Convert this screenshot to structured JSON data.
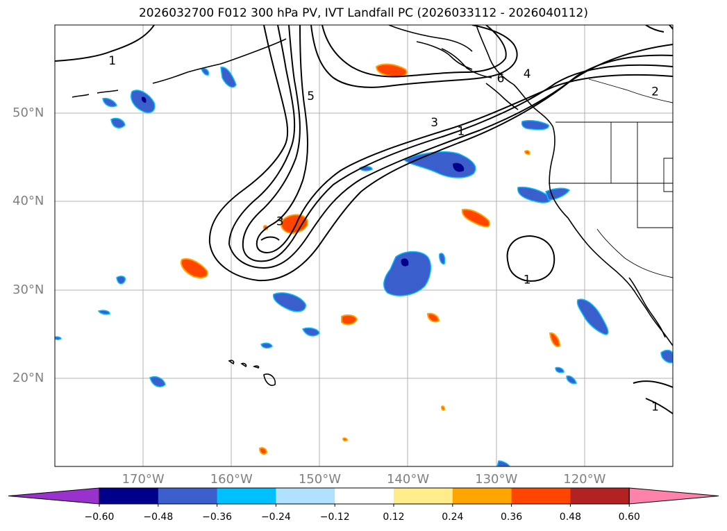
{
  "title": "2026032700 F012 300 hPa PV, IVT Landfall PC (2026033112 - 2026040112)",
  "map": {
    "lon_range": [
      -180,
      -110
    ],
    "lat_range": [
      10,
      60
    ],
    "lat_labels": [
      {
        "lat": 50,
        "text": "50°N"
      },
      {
        "lat": 40,
        "text": "40°N"
      },
      {
        "lat": 30,
        "text": "30°N"
      },
      {
        "lat": 20,
        "text": "20°N"
      }
    ],
    "lon_labels": [
      {
        "lon": -170,
        "text": "170°W"
      },
      {
        "lon": -160,
        "text": "160°W"
      },
      {
        "lon": -150,
        "text": "150°W"
      },
      {
        "lon": -140,
        "text": "140°W"
      },
      {
        "lon": -130,
        "text": "130°W"
      },
      {
        "lon": -120,
        "text": "120°W"
      }
    ],
    "contour_labels": [
      {
        "text": "1",
        "lon": -173.5,
        "lat": 56.0
      },
      {
        "text": "5",
        "lon": -151.0,
        "lat": 52.0
      },
      {
        "text": "3",
        "lon": -137.0,
        "lat": 49.0
      },
      {
        "text": "1",
        "lon": -134.0,
        "lat": 48.0
      },
      {
        "text": "4",
        "lon": -126.5,
        "lat": 54.5
      },
      {
        "text": "6",
        "lon": -129.5,
        "lat": 54.0
      },
      {
        "text": "2",
        "lon": -112.0,
        "lat": 52.5
      },
      {
        "text": "3",
        "lon": -154.5,
        "lat": 37.8
      },
      {
        "text": "1",
        "lon": -126.5,
        "lat": 31.2
      },
      {
        "text": "1",
        "lon": -112.0,
        "lat": 16.8
      }
    ]
  },
  "colorbar": {
    "ticks": [
      "−0.60",
      "−0.48",
      "−0.36",
      "−0.24",
      "−0.12",
      "0.12",
      "0.24",
      "0.36",
      "0.48",
      "0.60"
    ],
    "colors": [
      "#9932cc",
      "#00008b",
      "#3a5fcd",
      "#00bfff",
      "#b0e2ff",
      "#ffffff",
      "#ffec8b",
      "#ffa500",
      "#ff4500",
      "#b22222",
      "#ff82ab"
    ]
  }
}
